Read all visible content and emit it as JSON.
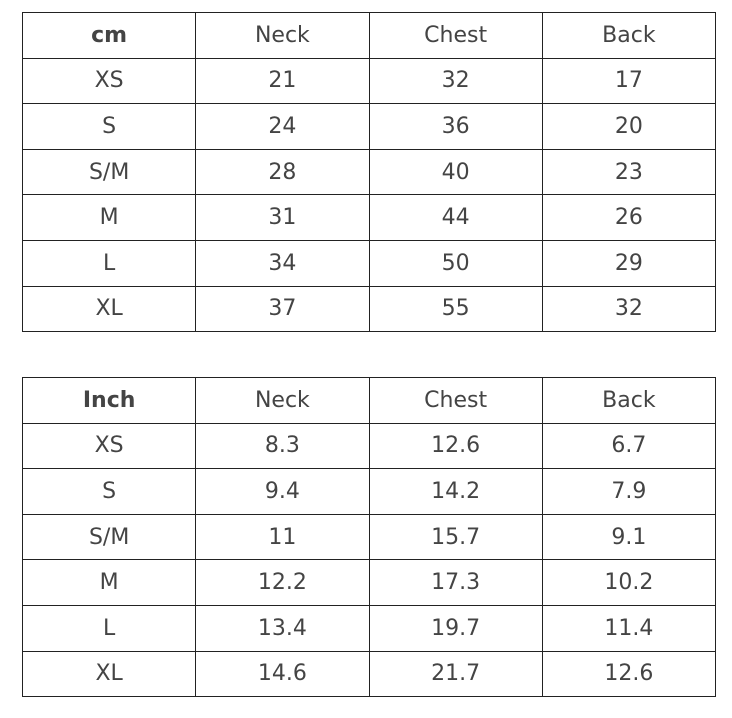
{
  "tables": [
    {
      "unit": "cm",
      "headers": [
        "Neck",
        "Chest",
        "Back"
      ],
      "rows": [
        [
          "XS",
          "21",
          "32",
          "17"
        ],
        [
          "S",
          "24",
          "36",
          "20"
        ],
        [
          "S/M",
          "28",
          "40",
          "23"
        ],
        [
          "M",
          "31",
          "44",
          "26"
        ],
        [
          "L",
          "34",
          "50",
          "29"
        ],
        [
          "XL",
          "37",
          "55",
          "32"
        ]
      ]
    },
    {
      "unit": "Inch",
      "headers": [
        "Neck",
        "Chest",
        "Back"
      ],
      "rows": [
        [
          "XS",
          "8.3",
          "12.6",
          "6.7"
        ],
        [
          "S",
          "9.4",
          "14.2",
          "7.9"
        ],
        [
          "S/M",
          "11",
          "15.7",
          "9.1"
        ],
        [
          "M",
          "12.2",
          "17.3",
          "10.2"
        ],
        [
          "L",
          "13.4",
          "19.7",
          "11.4"
        ],
        [
          "XL",
          "14.6",
          "21.7",
          "12.6"
        ]
      ]
    }
  ]
}
